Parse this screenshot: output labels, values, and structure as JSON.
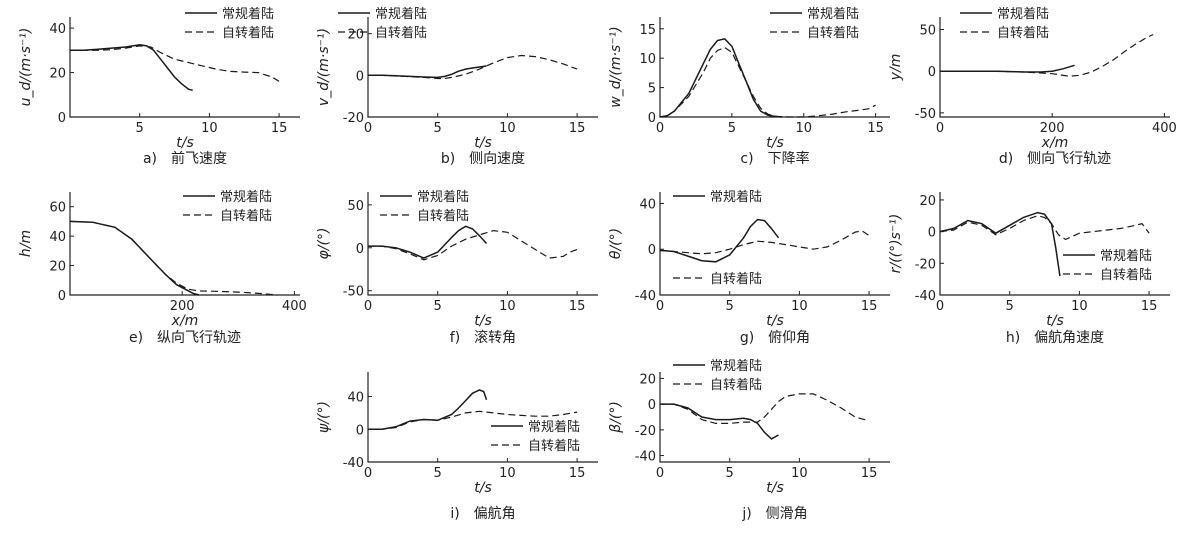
{
  "legend_labels": {
    "solid": "常规着陆",
    "dashed": "自转着陆"
  },
  "chart_data": [
    {
      "id": "a",
      "type": "line",
      "caption": "a)　前飞速度",
      "xlabel": "t/s",
      "ylabel": "u_d/(m·s⁻¹)",
      "xlim": [
        0,
        16.5
      ],
      "ylim": [
        0,
        45
      ],
      "xticks": [
        5,
        10,
        15
      ],
      "yticks": [
        0,
        20,
        40
      ],
      "series": [
        {
          "name": "常规着陆",
          "style": "solid",
          "x": [
            0,
            1,
            2,
            3,
            4,
            5,
            5.5,
            6,
            6.5,
            7,
            7.5,
            8,
            8.5,
            8.8
          ],
          "y": [
            30,
            30,
            30.5,
            31,
            31.5,
            32.5,
            32,
            30,
            26,
            22,
            18,
            15,
            12.5,
            12
          ]
        },
        {
          "name": "自转着陆",
          "style": "dashed",
          "x": [
            0,
            1,
            2,
            3,
            4,
            5,
            5.8,
            6.5,
            7.5,
            8.5,
            9.5,
            10.5,
            11.5,
            12.5,
            13.5,
            14.5,
            15
          ],
          "y": [
            30,
            30,
            30,
            30.3,
            31,
            32,
            31.5,
            29,
            26,
            24.5,
            23,
            21.5,
            20.5,
            20.2,
            20,
            18,
            16
          ]
        }
      ]
    },
    {
      "id": "b",
      "type": "line",
      "caption": "b)　侧向速度",
      "xlabel": "t/s",
      "ylabel": "v_d/(m·s⁻¹)",
      "xlim": [
        0,
        16.5
      ],
      "ylim": [
        -20,
        28
      ],
      "xticks": [
        0,
        5,
        10,
        15
      ],
      "yticks": [
        -20,
        0,
        20
      ],
      "series": [
        {
          "name": "常规着陆",
          "style": "solid",
          "x": [
            0,
            1,
            2,
            3,
            4,
            5,
            5.5,
            6,
            6.5,
            7,
            7.5,
            8,
            8.5
          ],
          "y": [
            0,
            0,
            -0.2,
            -0.5,
            -0.8,
            -1,
            -0.5,
            0.5,
            2,
            3,
            3.5,
            4,
            4.5
          ]
        },
        {
          "name": "自转着陆",
          "style": "dashed",
          "x": [
            0,
            1,
            2,
            3,
            4,
            5,
            5.5,
            6,
            7,
            8,
            9,
            10,
            11,
            12,
            13,
            14,
            15
          ],
          "y": [
            0,
            0,
            -0.3,
            -0.6,
            -1,
            -1.5,
            -1.5,
            -1,
            0.5,
            3,
            6,
            8.5,
            9.5,
            9,
            7.5,
            5.5,
            3
          ]
        }
      ]
    },
    {
      "id": "c",
      "type": "line",
      "caption": "c)　下降率",
      "xlabel": "t/s",
      "ylabel": "w_d/(m·s⁻¹)",
      "xlim": [
        0,
        16
      ],
      "ylim": [
        0,
        17
      ],
      "xticks": [
        0,
        5,
        10,
        15
      ],
      "yticks": [
        0,
        5,
        10,
        15
      ],
      "series": [
        {
          "name": "常规着陆",
          "style": "solid",
          "x": [
            0,
            0.5,
            1,
            2,
            3,
            3.5,
            4,
            4.5,
            5,
            5.5,
            6,
            6.5,
            7,
            7.5,
            8,
            8.5
          ],
          "y": [
            0,
            0.2,
            1,
            4,
            9,
            11.5,
            13,
            13.3,
            12,
            9,
            6,
            3,
            1,
            0.3,
            0.1,
            0
          ]
        },
        {
          "name": "自转着陆",
          "style": "dashed",
          "x": [
            0,
            0.5,
            1,
            2,
            3,
            3.5,
            4,
            4.5,
            5,
            5.5,
            6,
            6.5,
            7,
            7.5,
            8,
            9,
            10,
            11,
            12,
            13,
            14,
            14.5,
            15
          ],
          "y": [
            0,
            0.2,
            1,
            3.5,
            7.5,
            10,
            11.3,
            11.8,
            11,
            8.5,
            6,
            3.5,
            1.5,
            0.5,
            0.1,
            0,
            0,
            0.2,
            0.5,
            0.9,
            1.2,
            1.4,
            2
          ]
        }
      ]
    },
    {
      "id": "d",
      "type": "line",
      "caption": "d)　侧向飞行轨迹",
      "xlabel": "x/m",
      "ylabel": "y/m",
      "xlim": [
        0,
        410
      ],
      "ylim": [
        -55,
        65
      ],
      "xticks": [
        0,
        200,
        400
      ],
      "yticks": [
        -50,
        0,
        50
      ],
      "series": [
        {
          "name": "常规着陆",
          "style": "solid",
          "x": [
            0,
            50,
            100,
            150,
            180,
            200,
            220,
            240
          ],
          "y": [
            0,
            0,
            0,
            -1,
            -1,
            0,
            3,
            7
          ]
        },
        {
          "name": "自转着陆",
          "style": "dashed",
          "x": [
            0,
            50,
            100,
            150,
            200,
            230,
            250,
            270,
            290,
            310,
            330,
            350,
            370,
            380
          ],
          "y": [
            0,
            0,
            0,
            -1,
            -3,
            -6,
            -5,
            -1,
            6,
            14,
            24,
            33,
            41,
            44
          ]
        }
      ]
    },
    {
      "id": "e",
      "type": "line",
      "caption": "e)　纵向飞行轨迹",
      "xlabel": "x/m",
      "ylabel": "h/m",
      "xlim": [
        0,
        410
      ],
      "ylim": [
        0,
        70
      ],
      "xticks": [
        200,
        400
      ],
      "yticks": [
        0,
        20,
        40,
        60
      ],
      "series": [
        {
          "name": "常规着陆",
          "style": "solid",
          "x": [
            0,
            40,
            80,
            110,
            130,
            150,
            170,
            190,
            210,
            220,
            230
          ],
          "y": [
            50,
            49.5,
            46,
            38,
            30,
            22,
            14,
            7,
            3,
            1,
            0
          ]
        },
        {
          "name": "自转着陆",
          "style": "dashed",
          "x": [
            0,
            40,
            80,
            110,
            130,
            150,
            170,
            190,
            210,
            230,
            260,
            300,
            340,
            370
          ],
          "y": [
            50,
            49.5,
            46,
            38,
            30,
            22,
            14,
            8,
            4,
            2.8,
            2.5,
            2,
            1,
            0
          ]
        }
      ]
    },
    {
      "id": "f",
      "type": "line",
      "caption": "f)　滚转角",
      "xlabel": "t/s",
      "ylabel": "φ/(°)",
      "xlim": [
        0,
        16.5
      ],
      "ylim": [
        -55,
        65
      ],
      "xticks": [
        0,
        5,
        10,
        15
      ],
      "yticks": [
        -50,
        0,
        50
      ],
      "series": [
        {
          "name": "常规着陆",
          "style": "solid",
          "x": [
            0,
            1,
            2,
            3,
            4,
            5,
            6,
            6.5,
            7,
            7.5,
            8,
            8.5
          ],
          "y": [
            2,
            2,
            0,
            -5,
            -12,
            -5,
            12,
            20,
            25,
            22,
            14,
            5
          ]
        },
        {
          "name": "自转着陆",
          "style": "dashed",
          "x": [
            0,
            1,
            2,
            3,
            4,
            5,
            6,
            7,
            8,
            9,
            10,
            11,
            12,
            13,
            14,
            14.5,
            15
          ],
          "y": [
            2,
            2,
            -1,
            -7,
            -14,
            -9,
            2,
            10,
            15,
            20,
            18,
            8,
            -2,
            -12,
            -10,
            -5,
            -2
          ]
        }
      ]
    },
    {
      "id": "g",
      "type": "line",
      "caption": "g)　俯仰角",
      "xlabel": "t/s",
      "ylabel": "θ/(°)",
      "xlim": [
        0,
        16.5
      ],
      "ylim": [
        -40,
        50
      ],
      "xticks": [
        0,
        5,
        10,
        15
      ],
      "yticks": [
        -40,
        0,
        40
      ],
      "series": [
        {
          "name": "常规着陆",
          "style": "solid",
          "x": [
            0,
            1,
            2,
            3,
            4,
            5,
            6,
            6.5,
            7,
            7.5,
            8,
            8.5
          ],
          "y": [
            -1,
            -2,
            -6,
            -10,
            -11,
            -5,
            10,
            20,
            26,
            25,
            18,
            10
          ]
        },
        {
          "name": "自转着陆",
          "style": "dashed",
          "x": [
            0,
            1,
            2,
            3,
            4,
            5,
            6,
            7,
            8,
            9,
            10,
            11,
            12,
            13,
            14,
            14.5,
            15
          ],
          "y": [
            -1,
            -2,
            -3,
            -4,
            -3,
            0,
            4,
            7,
            6,
            4,
            2,
            0,
            2,
            8,
            15,
            16,
            12
          ]
        }
      ]
    },
    {
      "id": "h",
      "type": "line",
      "caption": "h)　偏航角速度",
      "xlabel": "t/s",
      "ylabel": "r/((°)s⁻¹)",
      "xlim": [
        0,
        16.5
      ],
      "ylim": [
        -40,
        25
      ],
      "xticks": [
        0,
        5,
        10,
        15
      ],
      "yticks": [
        -40,
        -20,
        0,
        20
      ],
      "series": [
        {
          "name": "常规着陆",
          "style": "solid",
          "x": [
            0,
            1,
            2,
            3,
            4,
            5,
            6,
            7,
            7.5,
            8,
            8.3,
            8.6
          ],
          "y": [
            0,
            2,
            7,
            5,
            -1,
            4,
            9,
            12,
            11,
            5,
            -10,
            -28
          ]
        },
        {
          "name": "自转着陆",
          "style": "dashed",
          "x": [
            0,
            1,
            2,
            3,
            4,
            5,
            6,
            7,
            7.5,
            8,
            8.5,
            9,
            10,
            11,
            12,
            13,
            14,
            14.5,
            15
          ],
          "y": [
            0,
            1,
            6,
            4,
            -2,
            2,
            7,
            10,
            9,
            5,
            -2,
            -5,
            -1,
            0,
            1,
            2,
            4,
            5,
            -1
          ]
        }
      ]
    },
    {
      "id": "i",
      "type": "line",
      "caption": "i)　偏航角",
      "xlabel": "t/s",
      "ylabel": "ψ/(°)",
      "xlim": [
        0,
        16.5
      ],
      "ylim": [
        -40,
        70
      ],
      "xticks": [
        0,
        5,
        10,
        15
      ],
      "yticks": [
        -40,
        0,
        40
      ],
      "series": [
        {
          "name": "常规着陆",
          "style": "solid",
          "x": [
            0,
            1,
            2,
            3,
            4,
            5,
            6,
            6.5,
            7,
            7.5,
            8,
            8.3,
            8.5
          ],
          "y": [
            0,
            0,
            3,
            10,
            12,
            11,
            18,
            26,
            35,
            44,
            48,
            46,
            36
          ]
        },
        {
          "name": "自转着陆",
          "style": "dashed",
          "x": [
            0,
            1,
            2,
            3,
            4,
            5,
            6,
            7,
            8,
            9,
            10,
            11,
            12,
            13,
            14,
            15
          ],
          "y": [
            0,
            0,
            2,
            9,
            12,
            11,
            15,
            20,
            22,
            20,
            18,
            17,
            16,
            16,
            18,
            21
          ]
        }
      ]
    },
    {
      "id": "j",
      "type": "line",
      "caption": "j)　侧滑角",
      "xlabel": "t/s",
      "ylabel": "β/(°)",
      "xlim": [
        0,
        16.5
      ],
      "ylim": [
        -45,
        25
      ],
      "xticks": [
        0,
        5,
        10,
        15
      ],
      "yticks": [
        -40,
        -20,
        0,
        20
      ],
      "series": [
        {
          "name": "常规着陆",
          "style": "solid",
          "x": [
            0,
            1,
            2,
            3,
            4,
            5,
            6,
            6.5,
            7,
            7.5,
            8,
            8.5
          ],
          "y": [
            0,
            0,
            -3,
            -10,
            -12,
            -12,
            -11,
            -12,
            -15,
            -22,
            -27,
            -24
          ]
        },
        {
          "name": "自转着陆",
          "style": "dashed",
          "x": [
            0,
            1,
            2,
            3,
            4,
            5,
            6,
            7,
            7.5,
            8,
            8.5,
            9,
            10,
            11,
            12,
            13,
            14,
            15
          ],
          "y": [
            0,
            0,
            -4,
            -12,
            -15,
            -15,
            -14,
            -14,
            -10,
            -4,
            2,
            6,
            8,
            8,
            3,
            -3,
            -10,
            -13
          ]
        }
      ]
    }
  ]
}
